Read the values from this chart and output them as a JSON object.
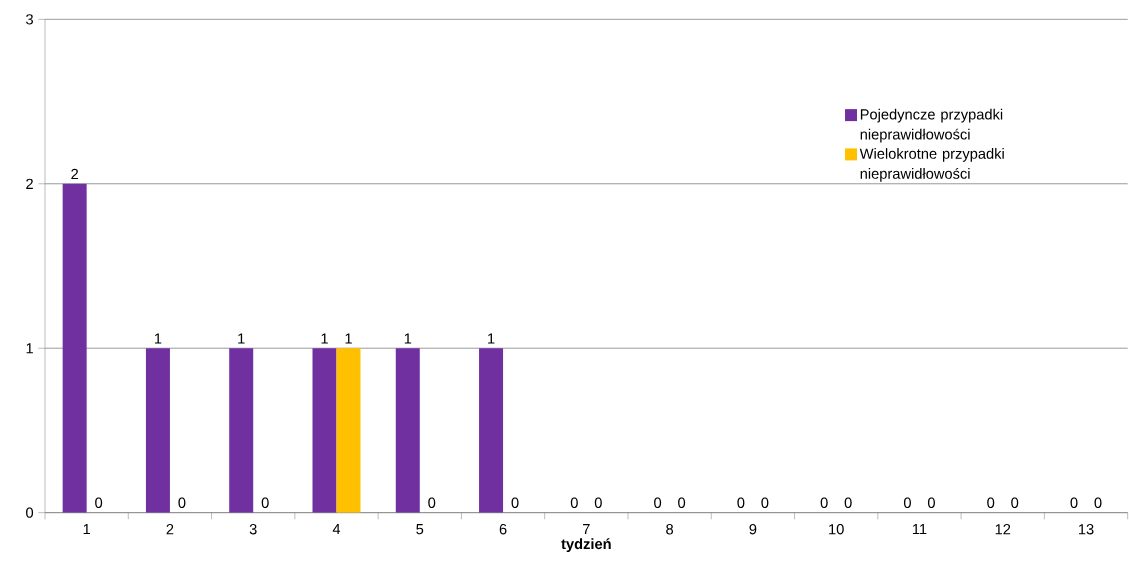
{
  "chart_data": {
    "type": "bar",
    "xlabel": "tydzień",
    "categories": [
      "1",
      "2",
      "3",
      "4",
      "5",
      "6",
      "7",
      "8",
      "9",
      "10",
      "11",
      "12",
      "13"
    ],
    "series": [
      {
        "name": "Pojedyncze przypadki nieprawidłowości",
        "color": "#7030a0",
        "values": [
          2,
          1,
          1,
          1,
          1,
          1,
          0,
          0,
          0,
          0,
          0,
          0,
          0
        ]
      },
      {
        "name": "Wielokrotne przypadki nieprawidłowości",
        "color": "#ffc000",
        "values": [
          0,
          0,
          0,
          1,
          0,
          0,
          0,
          0,
          0,
          0,
          0,
          0,
          0
        ]
      }
    ],
    "ylim": [
      0,
      3
    ],
    "yticks": [
      0,
      1,
      2,
      3
    ],
    "grid": "y",
    "legend": "right",
    "data_labels": true
  }
}
